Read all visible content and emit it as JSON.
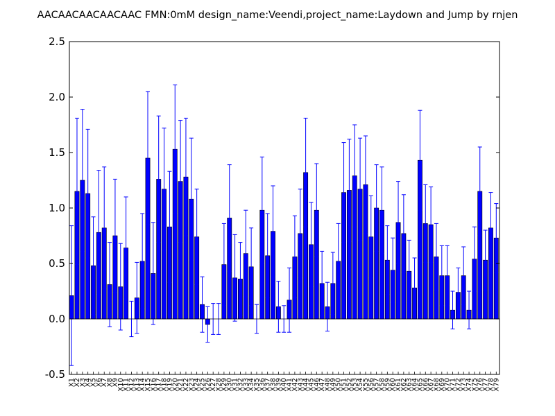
{
  "chart_data": {
    "type": "bar",
    "title": "AACAACAACAACAAC  FMN:0mM  design_name:Veendi,project_name:Laydown and Jump by rnjen",
    "xlabel": "",
    "ylabel": "",
    "ylim": [
      -0.5,
      2.5
    ],
    "yticks": [
      "-0.5",
      "0.0",
      "0.5",
      "1.0",
      "1.5",
      "2.0",
      "2.5"
    ],
    "grid": false,
    "categories": [
      "X1",
      "X2",
      "X3",
      "X4",
      "X5",
      "X6",
      "X7",
      "X8",
      "X9",
      "X10",
      "X11",
      "X12",
      "X13",
      "X14",
      "X15",
      "X16",
      "X17",
      "X18",
      "X19",
      "X20",
      "X21",
      "X22",
      "X23",
      "X24",
      "X25",
      "X26",
      "X27",
      "X28",
      "X29",
      "X30",
      "X31",
      "X32",
      "X33",
      "X34",
      "X35",
      "X36",
      "X37",
      "X38",
      "X39",
      "X40",
      "X41",
      "X42",
      "X43",
      "X44",
      "X45",
      "X46",
      "X47",
      "X48",
      "X49",
      "X50",
      "X51",
      "X52",
      "X53",
      "X54",
      "X55",
      "X56",
      "X57",
      "X58",
      "X59",
      "X60",
      "X61",
      "X62",
      "X63",
      "X64",
      "X65",
      "X66",
      "X67",
      "X68",
      "X69",
      "X70",
      "X71",
      "X72",
      "X73",
      "X74",
      "X75",
      "X76",
      "X77",
      "X78",
      "X79"
    ],
    "values": [
      0.21,
      1.15,
      1.25,
      1.13,
      0.48,
      0.78,
      0.82,
      0.31,
      0.75,
      0.29,
      0.64,
      0.0,
      0.19,
      0.52,
      1.45,
      0.41,
      1.26,
      1.17,
      0.83,
      1.53,
      1.24,
      1.28,
      1.08,
      0.74,
      0.13,
      -0.05,
      0.0,
      0.0,
      0.49,
      0.91,
      0.37,
      0.36,
      0.59,
      0.47,
      0.0,
      0.98,
      0.57,
      0.79,
      0.11,
      0.0,
      0.17,
      0.56,
      0.77,
      1.32,
      0.67,
      0.98,
      0.32,
      0.11,
      0.32,
      0.52,
      1.14,
      1.16,
      1.29,
      1.17,
      1.21,
      0.74,
      1.0,
      0.98,
      0.53,
      0.44,
      0.87,
      0.77,
      0.43,
      0.28,
      1.43,
      0.86,
      0.85,
      0.56,
      0.39,
      0.39,
      0.08,
      0.24,
      0.39,
      0.08,
      0.54,
      1.15,
      0.53,
      0.82,
      0.73
    ],
    "errors": [
      0.63,
      0.66,
      0.64,
      0.58,
      0.44,
      0.56,
      0.55,
      0.38,
      0.51,
      0.39,
      0.46,
      0.16,
      0.32,
      0.43,
      0.6,
      0.46,
      0.57,
      0.55,
      0.5,
      0.58,
      0.55,
      0.53,
      0.55,
      0.43,
      0.25,
      0.16,
      0.14,
      0.14,
      0.37,
      0.48,
      0.39,
      0.33,
      0.39,
      0.35,
      0.13,
      0.48,
      0.38,
      0.41,
      0.23,
      0.12,
      0.29,
      0.37,
      0.4,
      0.49,
      0.38,
      0.42,
      0.29,
      0.22,
      0.28,
      0.34,
      0.45,
      0.46,
      0.46,
      0.46,
      0.44,
      0.37,
      0.39,
      0.39,
      0.31,
      0.29,
      0.37,
      0.35,
      0.28,
      0.27,
      0.45,
      0.35,
      0.34,
      0.3,
      0.27,
      0.27,
      0.17,
      0.22,
      0.26,
      0.17,
      0.29,
      0.4,
      0.27,
      0.32,
      0.31
    ],
    "bar_color": "#0000ff",
    "error_color": "#0000ff"
  }
}
